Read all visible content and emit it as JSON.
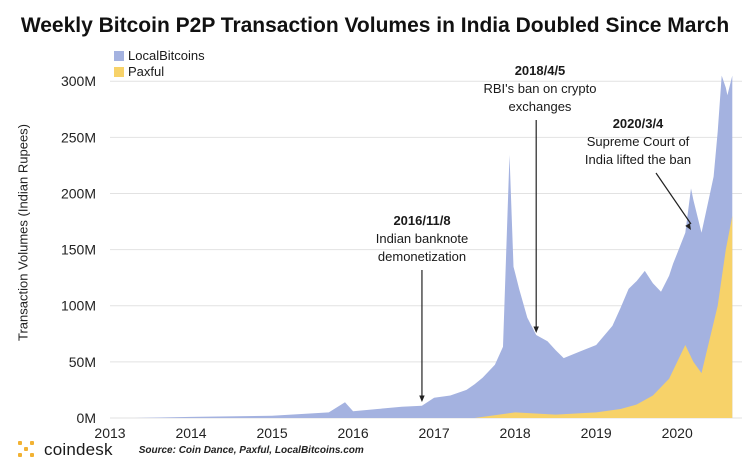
{
  "chart_data": {
    "type": "area",
    "title": "Weekly Bitcoin P2P Transaction Volumes in India Doubled Since March",
    "ylabel": "Transaction Volumes (Indian Rupees)",
    "xlabel": "",
    "stacked": true,
    "ylim": [
      0,
      310000000
    ],
    "xlim": [
      "2013-01",
      "2020-09"
    ],
    "yticks": [
      {
        "value": 0,
        "label": "0M"
      },
      {
        "value": 50000000,
        "label": "50M"
      },
      {
        "value": 100000000,
        "label": "100M"
      },
      {
        "value": 150000000,
        "label": "150M"
      },
      {
        "value": 200000000,
        "label": "200M"
      },
      {
        "value": 250000000,
        "label": "250M"
      },
      {
        "value": 300000000,
        "label": "300M"
      }
    ],
    "xticks": [
      "2013",
      "2014",
      "2015",
      "2016",
      "2017",
      "2018",
      "2019",
      "2020"
    ],
    "grid": "horizontal",
    "legend_position": "top-left",
    "series": [
      {
        "name": "LocalBitcoins",
        "color": "#a4b2e0",
        "points": [
          [
            2013.3,
            0
          ],
          [
            2014.0,
            1000000
          ],
          [
            2015.0,
            2000000
          ],
          [
            2015.7,
            5000000
          ],
          [
            2015.9,
            14000000
          ],
          [
            2016.0,
            6000000
          ],
          [
            2016.3,
            8000000
          ],
          [
            2016.6,
            10000000
          ],
          [
            2016.85,
            11000000
          ],
          [
            2017.0,
            18000000
          ],
          [
            2017.2,
            20000000
          ],
          [
            2017.4,
            25000000
          ],
          [
            2017.6,
            35000000
          ],
          [
            2017.75,
            45000000
          ],
          [
            2017.85,
            60000000
          ],
          [
            2017.93,
            230000000
          ],
          [
            2017.98,
            130000000
          ],
          [
            2018.05,
            110000000
          ],
          [
            2018.15,
            85000000
          ],
          [
            2018.26,
            70000000
          ],
          [
            2018.4,
            65000000
          ],
          [
            2018.6,
            50000000
          ],
          [
            2018.8,
            55000000
          ],
          [
            2019.0,
            60000000
          ],
          [
            2019.2,
            75000000
          ],
          [
            2019.4,
            105000000
          ],
          [
            2019.6,
            115000000
          ],
          [
            2019.8,
            85000000
          ],
          [
            2019.95,
            95000000
          ],
          [
            2020.1,
            100000000
          ],
          [
            2020.17,
            150000000
          ],
          [
            2020.3,
            125000000
          ],
          [
            2020.45,
            130000000
          ],
          [
            2020.55,
            180000000
          ],
          [
            2020.62,
            130000000
          ],
          [
            2020.68,
            125000000
          ]
        ]
      },
      {
        "name": "Paxful",
        "color": "#f7d269",
        "points": [
          [
            2017.5,
            0
          ],
          [
            2018.0,
            5000000
          ],
          [
            2018.5,
            3000000
          ],
          [
            2019.0,
            5000000
          ],
          [
            2019.3,
            8000000
          ],
          [
            2019.5,
            12000000
          ],
          [
            2019.7,
            20000000
          ],
          [
            2019.9,
            35000000
          ],
          [
            2020.0,
            50000000
          ],
          [
            2020.1,
            65000000
          ],
          [
            2020.2,
            50000000
          ],
          [
            2020.3,
            40000000
          ],
          [
            2020.4,
            70000000
          ],
          [
            2020.5,
            100000000
          ],
          [
            2020.6,
            150000000
          ],
          [
            2020.68,
            180000000
          ]
        ]
      }
    ],
    "annotations": [
      {
        "date": "2016/11/8",
        "text": [
          "Indian banknote",
          "demonetization"
        ],
        "x": 2016.85
      },
      {
        "date": "2018/4/5",
        "text": [
          "RBI's ban on crypto",
          "exchanges"
        ],
        "x": 2018.26
      },
      {
        "date": "2020/3/4",
        "text": [
          "Supreme Court of",
          "India lifted the ban"
        ],
        "x": 2020.17
      }
    ]
  },
  "footer": {
    "brand": "coindesk",
    "source": "Source: Coin Dance, Paxful, LocalBitcoins.com",
    "logo_color": "#f2b233"
  }
}
